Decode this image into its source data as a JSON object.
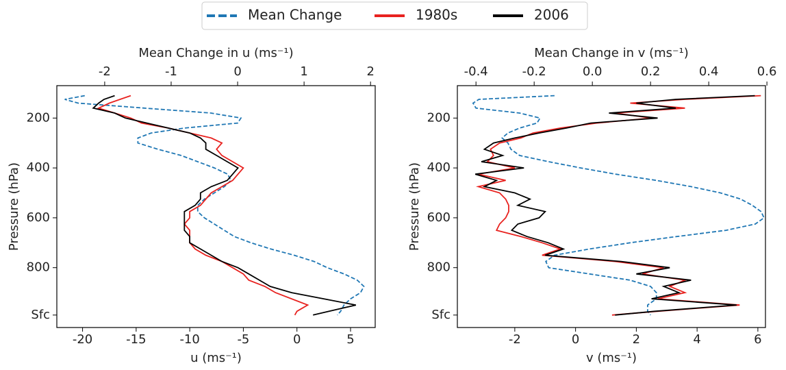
{
  "chart_data": [
    {
      "type": "line",
      "xlabel": "u (ms⁻¹)",
      "x2label": "Mean Change in u (ms⁻¹)",
      "ylabel": "Pressure (hPa)",
      "xlim": [
        -22.4,
        7.3
      ],
      "xticks": [
        -20,
        -15,
        -10,
        -5,
        0,
        5
      ],
      "x2lim": [
        -2.72,
        2.07
      ],
      "x2ticks": [
        -2,
        -1,
        0,
        1,
        2
      ],
      "ylim": [
        1040,
        70
      ],
      "yticks": [
        200,
        400,
        600,
        800,
        {
          "value": 990,
          "label": "Sfc"
        }
      ],
      "y": [
        110,
        125,
        140,
        160,
        180,
        200,
        220,
        240,
        260,
        280,
        300,
        325,
        350,
        375,
        400,
        425,
        450,
        475,
        500,
        525,
        550,
        575,
        600,
        625,
        650,
        675,
        700,
        725,
        750,
        775,
        800,
        825,
        850,
        875,
        900,
        925,
        950,
        975,
        990
      ],
      "series": [
        {
          "name": "Mean Change",
          "color": "#1f77b4",
          "linestyle": "dashed",
          "axis": "x2",
          "values": [
            -2.3,
            -2.6,
            -2.4,
            -1.4,
            -0.4,
            0.05,
            0.0,
            -0.8,
            -1.3,
            -1.5,
            -1.5,
            -1.2,
            -0.85,
            -0.6,
            -0.35,
            -0.15,
            -0.1,
            -0.2,
            -0.35,
            -0.5,
            -0.6,
            -0.6,
            -0.5,
            -0.35,
            -0.2,
            -0.05,
            0.2,
            0.5,
            0.85,
            1.15,
            1.35,
            1.6,
            1.8,
            1.9,
            1.85,
            1.7,
            1.6,
            1.55,
            1.5
          ]
        },
        {
          "name": "1980s",
          "color": "#e8221f",
          "linestyle": "solid",
          "values": [
            -15.5,
            -16.5,
            -17.5,
            -18.5,
            -17,
            -15.5,
            -14.5,
            -12,
            -10,
            -8,
            -7,
            -7.5,
            -7,
            -6,
            -5,
            -5.5,
            -6,
            -7,
            -8,
            -8.5,
            -9,
            -10,
            -10,
            -10.5,
            -10,
            -10,
            -10,
            -9.5,
            -8.5,
            -7,
            -6,
            -5,
            -4.5,
            -3,
            -2,
            -0.5,
            1,
            0,
            -0.2
          ]
        },
        {
          "name": "2006",
          "color": "#000000",
          "linestyle": "solid",
          "values": [
            -17,
            -18,
            -18.5,
            -19,
            -17,
            -16,
            -14,
            -12,
            -10,
            -9,
            -8.5,
            -8.5,
            -7.5,
            -6.5,
            -5.5,
            -6,
            -6.5,
            -8,
            -9,
            -9,
            -9.5,
            -10.5,
            -10.5,
            -10.5,
            -10.5,
            -10,
            -10,
            -9,
            -8,
            -7,
            -5.5,
            -4.5,
            -3.5,
            -2.5,
            -0.5,
            2.5,
            5.5,
            3,
            1.5
          ]
        }
      ]
    },
    {
      "type": "line",
      "xlabel": "v (ms⁻¹)",
      "x2label": "Mean Change in v (ms⁻¹)",
      "ylabel": "Pressure (hPa)",
      "xlim": [
        -3.89,
        6.25
      ],
      "xticks": [
        -2,
        0,
        2,
        4,
        6
      ],
      "x2lim": [
        -0.464,
        0.595
      ],
      "x2ticks": [
        -0.4,
        -0.2,
        {
          "value": 0,
          "label": "0.0"
        },
        0.2,
        0.4,
        0.6
      ],
      "ylim": [
        1040,
        70
      ],
      "yticks": [
        200,
        400,
        600,
        800,
        {
          "value": 990,
          "label": "Sfc"
        }
      ],
      "y": [
        110,
        125,
        140,
        160,
        180,
        200,
        220,
        240,
        260,
        280,
        300,
        325,
        350,
        375,
        400,
        425,
        450,
        475,
        500,
        525,
        550,
        575,
        600,
        625,
        650,
        675,
        700,
        725,
        750,
        775,
        800,
        825,
        850,
        875,
        900,
        925,
        950,
        975,
        990
      ],
      "series": [
        {
          "color": "#1f77b4",
          "linestyle": "dashed",
          "axis": "x2",
          "values": [
            -0.13,
            -0.39,
            -0.41,
            -0.4,
            -0.25,
            -0.18,
            -0.19,
            -0.25,
            -0.29,
            -0.31,
            -0.29,
            -0.28,
            -0.25,
            -0.15,
            -0.04,
            0.08,
            0.22,
            0.34,
            0.44,
            0.51,
            0.55,
            0.58,
            0.59,
            0.56,
            0.46,
            0.29,
            0.13,
            -0.01,
            -0.13,
            -0.16,
            -0.15,
            -0.01,
            0.13,
            0.2,
            0.22,
            0.22,
            0.19,
            0.19,
            0.2
          ]
        },
        {
          "color": "#e8221f",
          "linestyle": "solid",
          "values": [
            6.1,
            3.6,
            1.8,
            3.6,
            1.3,
            2.5,
            0.7,
            -0.5,
            -1.4,
            -1.8,
            -2.5,
            -2.8,
            -2.7,
            -2.9,
            -2.0,
            -3.2,
            -2.3,
            -3.2,
            -2.5,
            -2.3,
            -2.2,
            -2.2,
            -2.3,
            -2.5,
            -2.6,
            -1.8,
            -1.1,
            -0.5,
            -1.1,
            1.3,
            2.9,
            2.2,
            3.6,
            3.1,
            3.6,
            2.7,
            5.4,
            2.7,
            1.2
          ]
        },
        {
          "color": "#000000",
          "linestyle": "solid",
          "values": [
            5.9,
            3.3,
            2.0,
            3.3,
            1.1,
            2.7,
            0.5,
            -0.3,
            -1.2,
            -2.0,
            -2.7,
            -3.0,
            -2.4,
            -3.1,
            -1.7,
            -3.3,
            -2.6,
            -3.0,
            -2.0,
            -1.5,
            -1.9,
            -1.0,
            -1.2,
            -1.9,
            -2.1,
            -1.6,
            -0.9,
            -0.4,
            -1.0,
            1.5,
            3.1,
            2.0,
            3.8,
            2.9,
            3.4,
            2.5,
            5.3,
            2.6,
            1.3
          ]
        }
      ]
    }
  ]
}
